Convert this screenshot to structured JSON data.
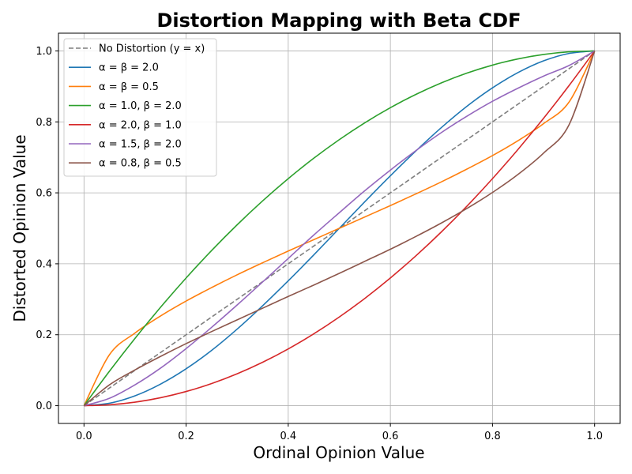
{
  "chart_data": {
    "type": "line",
    "title": "Distortion Mapping with Beta CDF",
    "xlabel": "Ordinal Opinion Value",
    "ylabel": "Distorted Opinion Value",
    "xlim": [
      -0.05,
      1.05
    ],
    "ylim": [
      -0.05,
      1.05
    ],
    "xticks": [
      "0.0",
      "0.2",
      "0.4",
      "0.6",
      "0.8",
      "1.0"
    ],
    "yticks": [
      "0.0",
      "0.2",
      "0.4",
      "0.6",
      "0.8",
      "1.0"
    ],
    "grid": true,
    "legend_position": "top-left",
    "x": [
      0.0,
      0.05,
      0.1,
      0.15,
      0.2,
      0.25,
      0.3,
      0.35,
      0.4,
      0.45,
      0.5,
      0.55,
      0.6,
      0.65,
      0.7,
      0.75,
      0.8,
      0.85,
      0.9,
      0.95,
      1.0
    ],
    "series": [
      {
        "name": "No Distortion (y = x)",
        "legend_prefix": "No Distortion (y = x)",
        "color": "#7f7f7f",
        "dashed": true,
        "values": [
          0.0,
          0.05,
          0.1,
          0.15,
          0.2,
          0.25,
          0.3,
          0.35,
          0.4,
          0.45,
          0.5,
          0.55,
          0.6,
          0.65,
          0.7,
          0.75,
          0.8,
          0.85,
          0.9,
          0.95,
          1.0
        ]
      },
      {
        "name": "α = β = 2.0",
        "legend_prefix": "α = β = 2.0",
        "color": "#1f77b4",
        "dashed": false,
        "values": [
          0.0,
          0.007,
          0.028,
          0.061,
          0.104,
          0.156,
          0.216,
          0.282,
          0.352,
          0.425,
          0.5,
          0.575,
          0.648,
          0.718,
          0.784,
          0.844,
          0.896,
          0.939,
          0.972,
          0.993,
          1.0
        ]
      },
      {
        "name": "α = β = 0.5",
        "legend_prefix": "α = β = 0.5",
        "color": "#ff7f0e",
        "dashed": false,
        "values": [
          0.0,
          0.144,
          0.205,
          0.253,
          0.295,
          0.333,
          0.369,
          0.403,
          0.436,
          0.468,
          0.5,
          0.532,
          0.564,
          0.597,
          0.631,
          0.667,
          0.705,
          0.747,
          0.795,
          0.856,
          1.0
        ]
      },
      {
        "name": "α = 1.0, β = 2.0",
        "legend_prefix": "α = 1.0, β = 2.0",
        "color": "#2ca02c",
        "dashed": false,
        "values": [
          0.0,
          0.0975,
          0.19,
          0.2775,
          0.36,
          0.4375,
          0.51,
          0.5775,
          0.64,
          0.6975,
          0.75,
          0.7975,
          0.84,
          0.8775,
          0.91,
          0.9375,
          0.96,
          0.9775,
          0.99,
          0.9975,
          1.0
        ]
      },
      {
        "name": "α = 2.0, β = 1.0",
        "legend_prefix": "α = 2.0, β = 1.0",
        "color": "#d62728",
        "dashed": false,
        "values": [
          0.0,
          0.0025,
          0.01,
          0.0225,
          0.04,
          0.0625,
          0.09,
          0.1225,
          0.16,
          0.2025,
          0.25,
          0.3025,
          0.36,
          0.4225,
          0.49,
          0.5625,
          0.64,
          0.7225,
          0.81,
          0.9025,
          1.0
        ]
      },
      {
        "name": "α = 1.5, β = 2.0",
        "legend_prefix": "α = 1.5, β = 2.0",
        "color": "#9467bd",
        "dashed": false,
        "values": [
          0.0,
          0.021,
          0.059,
          0.106,
          0.161,
          0.221,
          0.284,
          0.349,
          0.415,
          0.481,
          0.544,
          0.606,
          0.664,
          0.719,
          0.77,
          0.816,
          0.858,
          0.895,
          0.929,
          0.959,
          1.0
        ]
      },
      {
        "name": "α = 0.8, β = 0.5",
        "legend_prefix": "α = 0.8, β = 0.5",
        "color": "#8c564b",
        "dashed": false,
        "values": [
          0.0,
          0.059,
          0.101,
          0.139,
          0.175,
          0.209,
          0.242,
          0.275,
          0.308,
          0.34,
          0.373,
          0.407,
          0.441,
          0.477,
          0.515,
          0.556,
          0.601,
          0.652,
          0.712,
          0.792,
          1.0
        ]
      }
    ]
  }
}
